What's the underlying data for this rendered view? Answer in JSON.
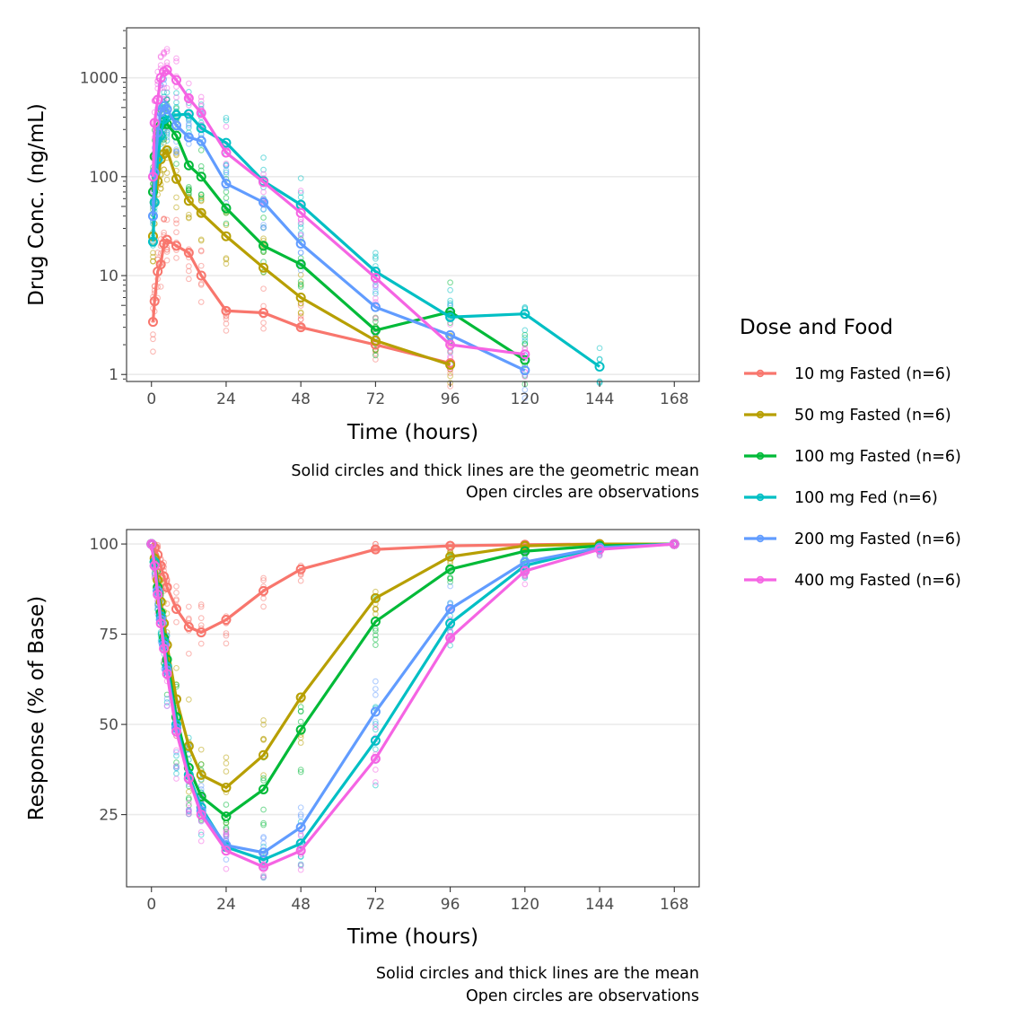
{
  "legend": {
    "title": "Dose and Food",
    "position": "right",
    "entries": [
      {
        "label": "10 mg Fasted (n=6)",
        "color": "#F8766D"
      },
      {
        "label": "50 mg Fasted (n=6)",
        "color": "#B79F00"
      },
      {
        "label": "100 mg Fasted (n=6)",
        "color": "#00BA38"
      },
      {
        "label": "100 mg Fed (n=6)",
        "color": "#00BFC4"
      },
      {
        "label": "200 mg Fasted (n=6)",
        "color": "#619CFF"
      },
      {
        "label": "400 mg Fasted (n=6)",
        "color": "#F564E3"
      }
    ]
  },
  "chart_data": [
    {
      "type": "line",
      "id": "pk",
      "title": "",
      "xlabel": "Time (hours)",
      "ylabel": "Drug Conc. (ng/mL)",
      "yscale": "log10",
      "xlim": [
        -8,
        176
      ],
      "ylim": [
        0.85,
        3200
      ],
      "xticks": [
        0,
        24,
        48,
        72,
        96,
        120,
        144,
        168
      ],
      "yticks": [
        1,
        10,
        100,
        1000
      ],
      "ytick_labels": [
        "1",
        "10",
        "100",
        "1000"
      ],
      "grid": "horizontal-major",
      "caption": [
        "Solid circles and thick lines are the geometric mean",
        "Open circles are observations"
      ],
      "series": [
        {
          "name": "10 mg Fasted (n=6)",
          "x": [
            0.5,
            1,
            2,
            3,
            4,
            5,
            8,
            12,
            16,
            24,
            36,
            48,
            72,
            96
          ],
          "y": [
            3.4,
            5.5,
            11,
            13,
            21,
            23,
            20,
            17,
            10,
            4.4,
            4.2,
            3.0,
            2.0,
            1.3
          ]
        },
        {
          "name": "50 mg Fasted (n=6)",
          "x": [
            0.5,
            1,
            2,
            3,
            4,
            5,
            8,
            12,
            16,
            24,
            36,
            48,
            72,
            96
          ],
          "y": [
            25,
            55,
            90,
            150,
            170,
            185,
            95,
            57,
            43,
            25,
            12,
            6.0,
            2.2,
            1.25
          ]
        },
        {
          "name": "100 mg Fasted (n=6)",
          "x": [
            0.5,
            1,
            2,
            3,
            4,
            5,
            8,
            12,
            16,
            24,
            36,
            48,
            72,
            96,
            120
          ],
          "y": [
            70,
            160,
            280,
            330,
            360,
            340,
            260,
            130,
            100,
            48,
            20,
            13,
            2.8,
            4.3,
            1.4
          ]
        },
        {
          "name": "100 mg Fed (n=6)",
          "x": [
            0.5,
            1,
            2,
            3,
            4,
            5,
            8,
            12,
            16,
            24,
            36,
            48,
            72,
            96,
            120,
            144
          ],
          "y": [
            22,
            55,
            150,
            260,
            380,
            400,
            420,
            430,
            310,
            220,
            90,
            52,
            11,
            3.8,
            4.1,
            1.2
          ]
        },
        {
          "name": "200 mg Fasted (n=6)",
          "x": [
            0.5,
            1,
            2,
            3,
            4,
            5,
            8,
            12,
            16,
            24,
            36,
            48,
            72,
            96,
            120
          ],
          "y": [
            40,
            110,
            280,
            450,
            520,
            480,
            330,
            250,
            230,
            85,
            55,
            21,
            4.8,
            2.5,
            1.1
          ]
        },
        {
          "name": "400 mg Fasted (n=6)",
          "x": [
            0.5,
            1,
            2,
            3,
            4,
            5,
            8,
            12,
            16,
            24,
            36,
            48,
            72,
            96,
            120
          ],
          "y": [
            100,
            350,
            600,
            1000,
            1150,
            1200,
            950,
            620,
            440,
            175,
            88,
            43,
            9.5,
            2.0,
            1.6
          ]
        }
      ]
    },
    {
      "type": "line",
      "id": "pd",
      "title": "",
      "xlabel": "Time (hours)",
      "ylabel": "Response (% of Base)",
      "yscale": "linear",
      "xlim": [
        -8,
        176
      ],
      "ylim": [
        5,
        104
      ],
      "xticks": [
        0,
        24,
        48,
        72,
        96,
        120,
        144,
        168
      ],
      "yticks": [
        25,
        50,
        75,
        100
      ],
      "ytick_labels": [
        "25",
        "50",
        "75",
        "100"
      ],
      "grid": "horizontal-major",
      "caption": [
        "Solid circles and thick lines are the mean",
        "Open circles are observations"
      ],
      "series": [
        {
          "name": "10 mg Fasted (n=6)",
          "x": [
            0,
            1,
            2,
            3,
            4,
            5,
            8,
            12,
            16,
            24,
            36,
            48,
            72,
            96,
            120,
            144,
            168
          ],
          "y": [
            100,
            99,
            97,
            94,
            91,
            88,
            82,
            77,
            75.5,
            79,
            87,
            93,
            98.5,
            99.5,
            99.8,
            100,
            100
          ]
        },
        {
          "name": "50 mg Fasted (n=6)",
          "x": [
            0,
            1,
            2,
            3,
            4,
            5,
            8,
            12,
            16,
            24,
            36,
            48,
            72,
            96,
            120,
            144,
            168
          ],
          "y": [
            100,
            96,
            90,
            84,
            78,
            72,
            57,
            44,
            36,
            32.5,
            41.5,
            57.5,
            85,
            96.5,
            99.5,
            100,
            100
          ]
        },
        {
          "name": "100 mg Fasted (n=6)",
          "x": [
            0,
            1,
            2,
            3,
            4,
            5,
            8,
            12,
            16,
            24,
            36,
            48,
            72,
            96,
            120,
            144,
            168
          ],
          "y": [
            100,
            95,
            88,
            81,
            74,
            68,
            52,
            38,
            30,
            24.5,
            32,
            48.5,
            78.5,
            93,
            98,
            99.5,
            100
          ]
        },
        {
          "name": "100 mg Fed (n=6)",
          "x": [
            0,
            1,
            2,
            3,
            4,
            5,
            8,
            12,
            16,
            24,
            36,
            48,
            72,
            96,
            120,
            144,
            168
          ],
          "y": [
            100,
            95,
            87,
            80,
            73,
            66,
            50,
            36,
            27,
            16,
            12.5,
            17,
            45.5,
            78,
            94,
            99,
            100
          ]
        },
        {
          "name": "200 mg Fasted (n=6)",
          "x": [
            0,
            1,
            2,
            3,
            4,
            5,
            8,
            12,
            16,
            24,
            36,
            48,
            72,
            96,
            120,
            144,
            168
          ],
          "y": [
            100,
            94,
            87,
            79,
            72,
            65,
            49,
            35,
            26,
            16.5,
            14.5,
            21.5,
            53.5,
            82,
            95,
            99,
            100
          ]
        },
        {
          "name": "400 mg Fasted (n=6)",
          "x": [
            0,
            1,
            2,
            3,
            4,
            5,
            8,
            12,
            16,
            24,
            36,
            48,
            72,
            96,
            120,
            144,
            168
          ],
          "y": [
            100,
            94,
            86,
            78,
            71,
            64,
            48,
            35,
            25,
            15,
            10.5,
            15,
            40.5,
            74,
            92.5,
            98.5,
            100
          ]
        }
      ]
    }
  ]
}
